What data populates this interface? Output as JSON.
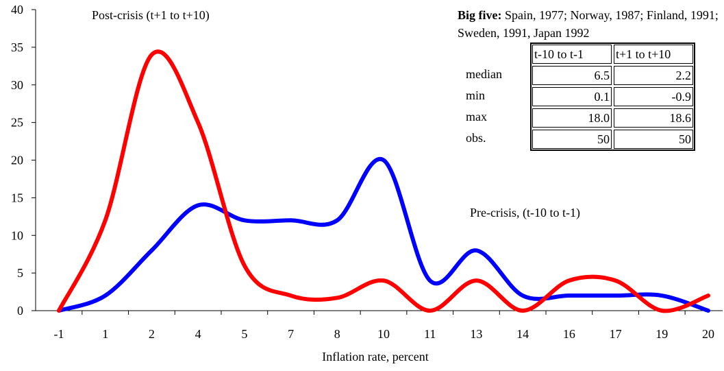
{
  "chart_data": {
    "type": "line",
    "xlabel": "Inflation rate, percent",
    "categories": [
      "-1",
      "1",
      "2",
      "4",
      "5",
      "7",
      "8",
      "10",
      "11",
      "13",
      "14",
      "16",
      "17",
      "19",
      "20"
    ],
    "series": [
      {
        "name": "Post-crisis (t+1 to t+10)",
        "color": "#ff0000",
        "values": [
          0,
          12,
          34,
          25,
          6,
          2,
          1.7,
          4,
          0,
          4,
          0,
          4,
          4,
          0,
          2
        ]
      },
      {
        "name": "Pre-crisis, (t-10 to t-1)",
        "color": "#0000ff",
        "values": [
          0,
          2,
          8,
          14,
          12,
          12,
          12,
          20,
          4,
          8,
          2,
          2,
          2,
          2,
          0
        ]
      }
    ],
    "ylim": [
      0,
      40
    ],
    "yticks": [
      0,
      5,
      10,
      15,
      20,
      25,
      30,
      35,
      40
    ],
    "table": {
      "title_bold": "Big five:",
      "title": "Spain, 1977; Norway, 1987; Finland, 1991; Sweden, 1991, Japan 1992",
      "columns": [
        "t-10 to t-1",
        "t+1 to t+10"
      ],
      "rows": [
        [
          "median",
          "6.5",
          "2.2"
        ],
        [
          "min",
          "0.1",
          "-0.9"
        ],
        [
          "max",
          "18.0",
          "18.6"
        ],
        [
          "obs.",
          "50",
          "50"
        ]
      ]
    }
  }
}
